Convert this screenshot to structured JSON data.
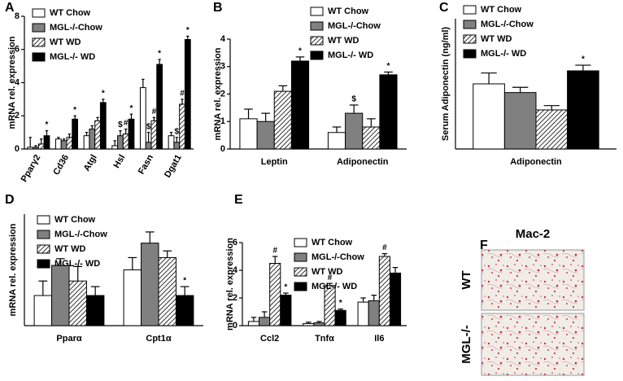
{
  "chart_data": [
    {
      "type": "bar",
      "panel": "A",
      "ylabel": "mRNA rel. expression",
      "categories": [
        "Pparγ2",
        "Cd36",
        "Atgl",
        "Hsl",
        "Fasn",
        "Dgat1"
      ],
      "ylim": [
        0,
        8
      ],
      "yticks": [
        0,
        2,
        4,
        6,
        8
      ],
      "series": [
        {
          "name": "WT Chow",
          "color": "#ffffff",
          "values": [
            0.1,
            0.6,
            0.8,
            0.2,
            3.7,
            0.8
          ],
          "errors": [
            0.6,
            0.1,
            0.2,
            0.3,
            0.5,
            0.2
          ],
          "annotations": [
            null,
            null,
            null,
            null,
            null,
            null
          ]
        },
        {
          "name": "MGL-/-Chow",
          "color": "#808080",
          "values": [
            0.1,
            0.5,
            1.2,
            0.8,
            0.4,
            0.4
          ],
          "errors": [
            0.1,
            0.1,
            0.2,
            0.3,
            0.6,
            0.3
          ],
          "annotations": [
            null,
            null,
            null,
            "$",
            "$",
            "$"
          ]
        },
        {
          "name": "WT WD",
          "color": "#ffffff",
          "hatch": true,
          "values": [
            0.3,
            0.7,
            1.7,
            0.9,
            1.7,
            2.7
          ],
          "errors": [
            0.3,
            0.2,
            0.2,
            0.3,
            0.2,
            0.3
          ],
          "annotations": [
            null,
            null,
            null,
            "#",
            "#",
            "#"
          ]
        },
        {
          "name": "MGL-/- WD",
          "color": "#000000",
          "values": [
            0.8,
            1.8,
            2.8,
            1.8,
            5.1,
            6.6
          ],
          "errors": [
            0.3,
            0.2,
            0.2,
            0.3,
            0.3,
            0.2
          ],
          "annotations": [
            "*",
            "*",
            "*",
            "*",
            "*",
            "*"
          ]
        }
      ]
    },
    {
      "type": "bar",
      "panel": "B",
      "ylabel": "mRNA rel. expression",
      "categories": [
        "Leptin",
        "Adiponectin"
      ],
      "ylim": [
        0,
        4
      ],
      "yticks": [
        0,
        1,
        2,
        3,
        4
      ],
      "series": [
        {
          "name": "WT Chow",
          "color": "#ffffff",
          "values": [
            1.1,
            0.6
          ],
          "errors": [
            0.35,
            0.2
          ],
          "annotations": [
            null,
            null
          ]
        },
        {
          "name": "MGL-/-Chow",
          "color": "#808080",
          "values": [
            1.0,
            1.3
          ],
          "errors": [
            0.3,
            0.3
          ],
          "annotations": [
            null,
            "$"
          ]
        },
        {
          "name": "WT WD",
          "color": "#ffffff",
          "hatch": true,
          "values": [
            2.1,
            0.8
          ],
          "errors": [
            0.2,
            0.3
          ],
          "annotations": [
            null,
            null
          ]
        },
        {
          "name": "MGL-/- WD",
          "color": "#000000",
          "values": [
            3.2,
            2.7
          ],
          "errors": [
            0.15,
            0.1
          ],
          "annotations": [
            "*",
            "*"
          ]
        }
      ]
    },
    {
      "type": "bar",
      "panel": "C",
      "ylabel": "Serum Adiponectin (ng/ml)",
      "categories": [
        "Adiponectin"
      ],
      "ylim": [
        0,
        30
      ],
      "series": [
        {
          "name": "WT Chow",
          "color": "#ffffff",
          "values": [
            15
          ],
          "errors": [
            2.5
          ],
          "annotations": [
            null
          ]
        },
        {
          "name": "MGL-/-Chow",
          "color": "#808080",
          "values": [
            13
          ],
          "errors": [
            1.2
          ],
          "annotations": [
            null
          ]
        },
        {
          "name": "WT WD",
          "color": "#ffffff",
          "hatch": true,
          "values": [
            9
          ],
          "errors": [
            1
          ],
          "annotations": [
            null
          ]
        },
        {
          "name": "MGL-/- WD",
          "color": "#000000",
          "values": [
            18
          ],
          "errors": [
            1.3
          ],
          "annotations": [
            "*"
          ]
        }
      ]
    },
    {
      "type": "bar",
      "panel": "D",
      "ylabel": "mRNA rel. expression",
      "categories": [
        "Pparα",
        "Cpt1α"
      ],
      "ylim": [
        0,
        1
      ],
      "series": [
        {
          "name": "WT Chow",
          "color": "#ffffff",
          "values": [
            0.27,
            0.5
          ],
          "errors": [
            0.13,
            0.11
          ],
          "annotations": [
            null,
            null
          ]
        },
        {
          "name": "MGL-/-Chow",
          "color": "#808080",
          "values": [
            0.54,
            0.74
          ],
          "errors": [
            0.06,
            0.1
          ],
          "annotations": [
            null,
            null
          ]
        },
        {
          "name": "WT WD",
          "color": "#ffffff",
          "hatch": true,
          "values": [
            0.4,
            0.61
          ],
          "errors": [
            0.13,
            0.06
          ],
          "annotations": [
            null,
            null
          ]
        },
        {
          "name": "MGL-/- WD",
          "color": "#000000",
          "values": [
            0.27,
            0.27
          ],
          "errors": [
            0.08,
            0.08
          ],
          "annotations": [
            null,
            "*"
          ]
        }
      ]
    },
    {
      "type": "bar",
      "panel": "E",
      "ylabel": "mRNA rel. expression",
      "categories": [
        "Ccl2",
        "Tnfα",
        "Il6"
      ],
      "ylim": [
        0,
        6
      ],
      "yticks": [
        0,
        2,
        4,
        6
      ],
      "series": [
        {
          "name": "WT Chow",
          "color": "#ffffff",
          "values": [
            0.3,
            0.15,
            1.7
          ],
          "errors": [
            0.3,
            0.1,
            0.3
          ],
          "annotations": [
            null,
            null,
            null
          ]
        },
        {
          "name": "MGL-/-Chow",
          "color": "#808080",
          "values": [
            0.6,
            0.2,
            1.8
          ],
          "errors": [
            0.4,
            0.1,
            0.4
          ],
          "annotations": [
            null,
            null,
            null
          ]
        },
        {
          "name": "WT WD",
          "color": "#ffffff",
          "hatch": true,
          "values": [
            4.5,
            2.9,
            5.0
          ],
          "errors": [
            0.5,
            0.15,
            0.2
          ],
          "annotations": [
            "#",
            "#",
            "#"
          ]
        },
        {
          "name": "MGL-/- WD",
          "color": "#000000",
          "values": [
            2.2,
            1.1,
            3.8
          ],
          "errors": [
            0.15,
            0.1,
            0.4
          ],
          "annotations": [
            "*",
            "*",
            null
          ]
        }
      ]
    }
  ],
  "image_panel": {
    "panel": "F",
    "title": "Mac-2",
    "rows": [
      "WT",
      "MGL-/-"
    ]
  }
}
